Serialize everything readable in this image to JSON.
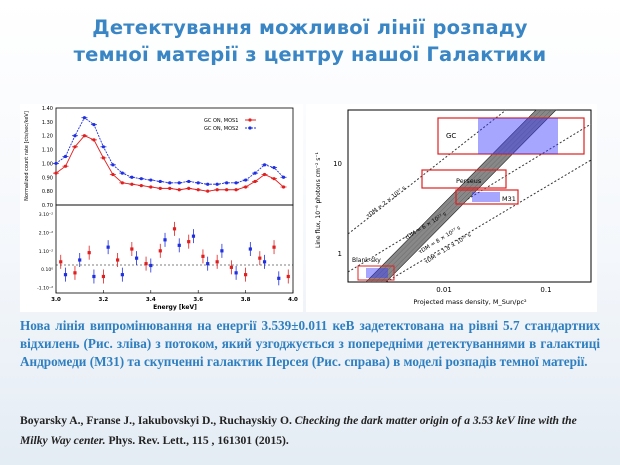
{
  "slide": {
    "title_line1": "Детектування можливої лінії розпаду",
    "title_line2": "темної матерії з центру нашої Галактики",
    "caption": "Нова лінія випромінювання на енергії 3.539±0.011 кеВ задетектована на рівні 5.7 стандартних відхилень (Рис. зліва) з потоком, який узгоджується з попередніми детектуваннями в галактиці Андромеди (M31) та скупченні галактик Персея (Рис. справа)  в моделі розпадів темної матерії.",
    "reference": {
      "authors": "Boyarsky A., Franse J., Iakubovskyi  D., Ruchayskiy  O.",
      "title": "Checking the dark matter origin of a 3.53 keV line with the Milky Way center.",
      "journal": "Phys.  Rev. Lett., 115 , 161301 (2015)."
    }
  },
  "chart_data": [
    {
      "type": "line",
      "panel": "left-top",
      "ylabel": "Normalized count rate [cts/sec/keV]",
      "xlim": [
        3.0,
        4.0
      ],
      "ylim": [
        0.7,
        1.4
      ],
      "yticks": [
        "0.70",
        "0.80",
        "0.90",
        "1.00",
        "1.10",
        "1.20",
        "1.30",
        "1.40"
      ],
      "legend": [
        "GC ON, MOS1",
        "GC ON, MOS2"
      ],
      "series": [
        {
          "name": "GC ON, MOS1",
          "color": "#e02020",
          "x": [
            3.0,
            3.04,
            3.08,
            3.12,
            3.16,
            3.2,
            3.24,
            3.28,
            3.32,
            3.36,
            3.4,
            3.44,
            3.48,
            3.52,
            3.56,
            3.6,
            3.64,
            3.68,
            3.72,
            3.76,
            3.8,
            3.84,
            3.88,
            3.92,
            3.96
          ],
          "y": [
            0.93,
            0.98,
            1.12,
            1.2,
            1.17,
            1.04,
            0.92,
            0.86,
            0.85,
            0.84,
            0.83,
            0.82,
            0.82,
            0.81,
            0.82,
            0.81,
            0.8,
            0.81,
            0.81,
            0.81,
            0.83,
            0.87,
            0.92,
            0.89,
            0.83
          ]
        },
        {
          "name": "GC ON, MOS2",
          "color": "#2030e0",
          "x": [
            3.0,
            3.04,
            3.08,
            3.12,
            3.16,
            3.2,
            3.24,
            3.28,
            3.32,
            3.36,
            3.4,
            3.44,
            3.48,
            3.52,
            3.56,
            3.6,
            3.64,
            3.68,
            3.72,
            3.76,
            3.8,
            3.84,
            3.88,
            3.92,
            3.96
          ],
          "y": [
            1.0,
            1.05,
            1.2,
            1.33,
            1.28,
            1.12,
            0.99,
            0.93,
            0.9,
            0.89,
            0.88,
            0.87,
            0.86,
            0.86,
            0.87,
            0.86,
            0.85,
            0.85,
            0.86,
            0.86,
            0.88,
            0.93,
            0.99,
            0.97,
            0.9
          ]
        }
      ]
    },
    {
      "type": "scatter",
      "panel": "left-bottom",
      "xlabel": "Energy [keV]",
      "xlim": [
        3.0,
        4.0
      ],
      "ylim": [
        -0.013,
        0.035
      ],
      "yticks": [
        "3.10⁻²",
        "2.10⁻²",
        "1.10⁻²",
        "0.10⁰",
        "-1.10⁻²"
      ],
      "xticks": [
        "3.0",
        "3.2",
        "3.4",
        "3.6",
        "3.8",
        "4.0"
      ],
      "series": [
        {
          "name": "MOS1 residuals",
          "color": "#e02020",
          "x": [
            3.02,
            3.08,
            3.14,
            3.2,
            3.26,
            3.32,
            3.38,
            3.44,
            3.5,
            3.56,
            3.62,
            3.68,
            3.74,
            3.8,
            3.86,
            3.92,
            3.98
          ],
          "y": [
            0.004,
            -0.002,
            0.009,
            -0.004,
            0.005,
            0.011,
            0.003,
            0.01,
            0.022,
            0.015,
            0.007,
            0.004,
            0.001,
            -0.003,
            0.006,
            0.012,
            -0.004
          ]
        },
        {
          "name": "MOS2 residuals",
          "color": "#2030e0",
          "x": [
            3.04,
            3.1,
            3.16,
            3.22,
            3.28,
            3.34,
            3.4,
            3.46,
            3.52,
            3.58,
            3.64,
            3.7,
            3.76,
            3.82,
            3.88,
            3.94
          ],
          "y": [
            -0.003,
            0.005,
            -0.004,
            0.012,
            -0.003,
            0.006,
            0.002,
            0.016,
            0.013,
            0.018,
            0.003,
            0.01,
            -0.002,
            0.011,
            0.004,
            -0.005
          ]
        }
      ]
    },
    {
      "type": "line",
      "panel": "right",
      "xlabel": "Projected mass density, M_Sun/pc²",
      "ylabel": "Line flux, 10⁻⁶ photons cm⁻² s⁻¹",
      "xscale": "log",
      "yscale": "log",
      "xticks": [
        "0.01",
        "0.1"
      ],
      "yticks": [
        "1",
        "10"
      ],
      "regions": [
        "GC",
        "Perseus",
        "M31",
        "Blank-sky"
      ],
      "lines": [
        "τDM = 2 × 10²⁷ s",
        "τDM = 6 × 10²⁷ s",
        "τDM = 8 × 10²⁷ s",
        "τDM = 1.8 × 10²⁸ s"
      ]
    }
  ]
}
